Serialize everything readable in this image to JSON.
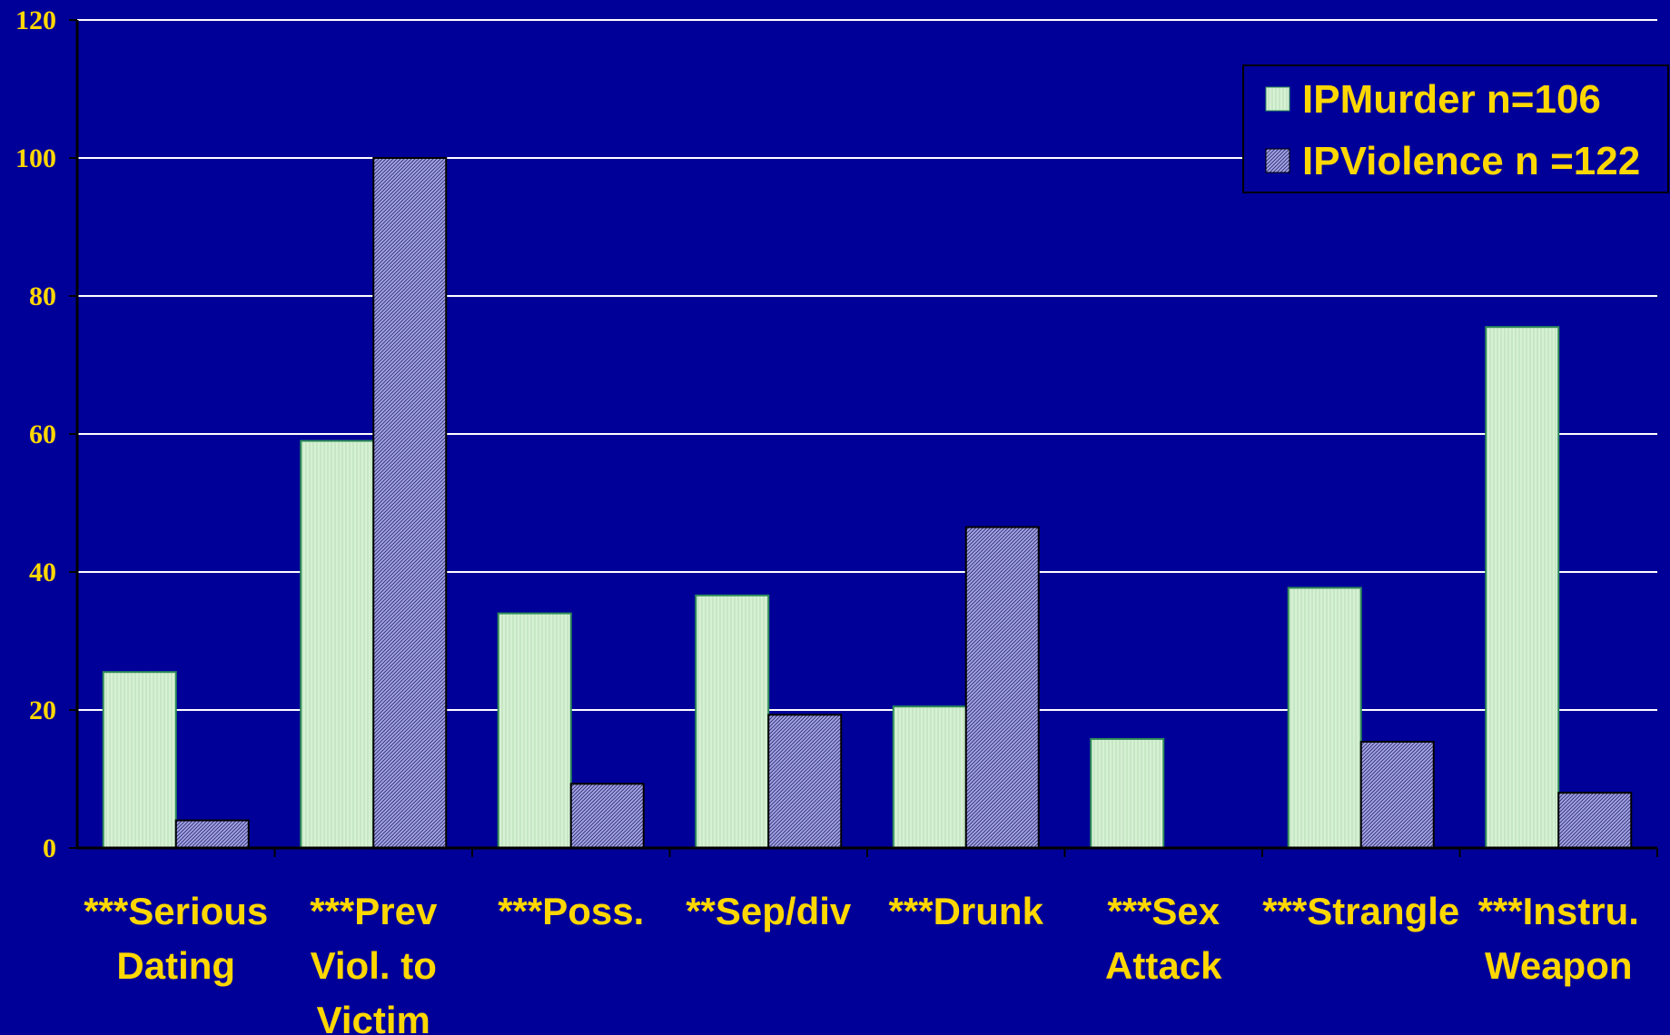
{
  "colors": {
    "background": "#000099",
    "text": "#FFD700",
    "gridline": "#FFFFFF",
    "axis": "#000000",
    "murder_fill": "#D7F1D5",
    "murder_stroke": "#2E8B57",
    "violence_fill": "#9A9AE0",
    "violence_stroke": "#000000"
  },
  "chart_data": {
    "type": "bar",
    "categories": [
      [
        "***Serious",
        "Dating"
      ],
      [
        "***Prev",
        "Viol. to",
        "Victim"
      ],
      [
        "***Poss."
      ],
      [
        "**Sep/div"
      ],
      [
        "***Drunk"
      ],
      [
        "***Sex",
        "Attack"
      ],
      [
        "***Strangle"
      ],
      [
        "***Instru.",
        "Weapon"
      ]
    ],
    "series": [
      {
        "name": "IPMurder n=106",
        "values": [
          25.5,
          59,
          34,
          36.6,
          20.5,
          15.8,
          37.7,
          75.5
        ]
      },
      {
        "name": "IPViolence n =122",
        "values": [
          4,
          100,
          9.3,
          19.3,
          46.5,
          0,
          15.4,
          8
        ]
      }
    ],
    "ylim": [
      0,
      120
    ],
    "yticks": [
      "0",
      "20",
      "40",
      "60",
      "80",
      "100",
      "120"
    ],
    "grid": true,
    "legend": "top-right"
  }
}
